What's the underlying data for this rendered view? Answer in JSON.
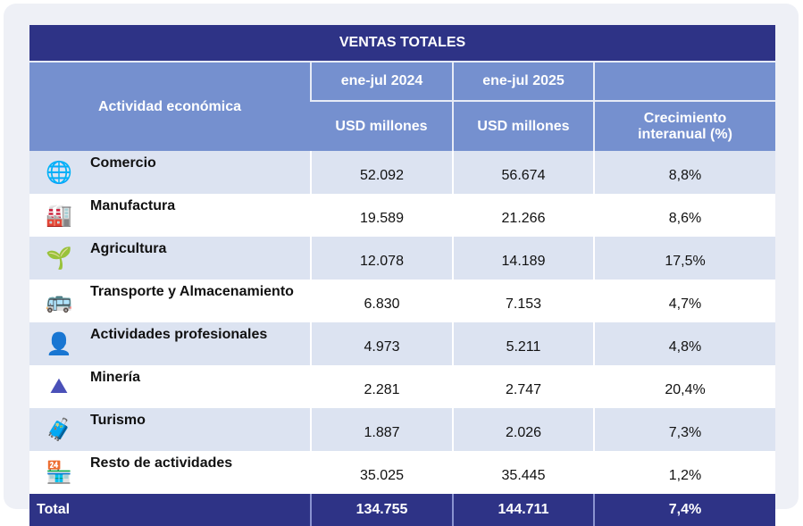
{
  "title": "VENTAS TOTALES",
  "header": {
    "activity": "Actividad económica",
    "period_2024": "ene-jul 2024",
    "period_2025": "ene-jul 2025",
    "unit_2024": "USD millones",
    "unit_2025": "USD millones",
    "growth": "Crecimiento interanual (%)"
  },
  "rows": [
    {
      "activity": "Comercio",
      "icon": "globe-store-icon",
      "v2024": "52.092",
      "v2025": "56.674",
      "growth": "8,8%"
    },
    {
      "activity": "Manufactura",
      "icon": "factory-worker-icon",
      "v2024": "19.589",
      "v2025": "21.266",
      "growth": "8,6%"
    },
    {
      "activity": "Agricultura",
      "icon": "plant-hand-icon",
      "v2024": "12.078",
      "v2025": "14.189",
      "growth": "17,5%"
    },
    {
      "activity": "Transporte y Almacenamiento",
      "icon": "bus-icon",
      "v2024": "6.830",
      "v2025": "7.153",
      "growth": "4,7%"
    },
    {
      "activity": "Actividades profesionales",
      "icon": "professional-user-icon",
      "v2024": "4.973",
      "v2025": "5.211",
      "growth": "4,8%"
    },
    {
      "activity": "Minería",
      "icon": "mine-icon",
      "v2024": "2.281",
      "v2025": "2.747",
      "growth": "20,4%"
    },
    {
      "activity": "Turismo",
      "icon": "traveler-luggage-icon",
      "v2024": "1.887",
      "v2025": "2.026",
      "growth": "7,3%"
    },
    {
      "activity": "Resto de actividades",
      "icon": "shop-idea-icon",
      "v2024": "35.025",
      "v2025": "35.445",
      "growth": "1,2%"
    }
  ],
  "total": {
    "label": "Total",
    "v2024": "134.755",
    "v2025": "144.711",
    "growth": "7,4%"
  }
}
